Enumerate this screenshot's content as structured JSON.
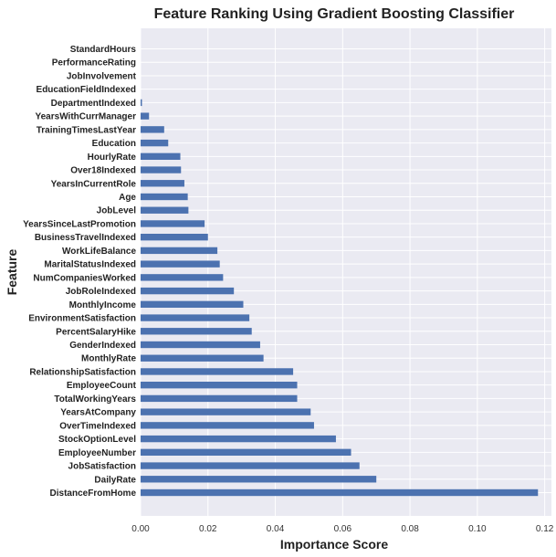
{
  "chart_data": {
    "type": "bar",
    "orientation": "horizontal",
    "title": "Feature Ranking Using Gradient Boosting Classifier",
    "xlabel": "Importance Score",
    "ylabel": "Feature",
    "xlim": [
      0,
      0.122
    ],
    "xticks": [
      "0.00",
      "0.02",
      "0.04",
      "0.06",
      "0.08",
      "0.10",
      "0.12"
    ],
    "grid": true,
    "background": "#eaeaf2",
    "bar_color": "#4c72b0",
    "categories": [
      "DistanceFromHome",
      "DailyRate",
      "JobSatisfaction",
      "EmployeeNumber",
      "StockOptionLevel",
      "OverTimeIndexed",
      "YearsAtCompany",
      "TotalWorkingYears",
      "EmployeeCount",
      "RelationshipSatisfaction",
      "MonthlyRate",
      "GenderIndexed",
      "PercentSalaryHike",
      "EnvironmentSatisfaction",
      "MonthlyIncome",
      "JobRoleIndexed",
      "NumCompaniesWorked",
      "MaritalStatusIndexed",
      "WorkLifeBalance",
      "BusinessTravelIndexed",
      "YearsSinceLastPromotion",
      "JobLevel",
      "Age",
      "YearsInCurrentRole",
      "Over18Indexed",
      "HourlyRate",
      "Education",
      "TrainingTimesLastYear",
      "YearsWithCurrManager",
      "DepartmentIndexed",
      "EducationFieldIndexed",
      "JobInvolvement",
      "PerformanceRating",
      "StandardHours"
    ],
    "values": [
      0.118,
      0.07,
      0.065,
      0.0625,
      0.058,
      0.0515,
      0.0505,
      0.0465,
      0.0465,
      0.0453,
      0.0365,
      0.0355,
      0.033,
      0.0323,
      0.0305,
      0.0277,
      0.0245,
      0.0235,
      0.0228,
      0.02,
      0.019,
      0.0142,
      0.014,
      0.013,
      0.012,
      0.0118,
      0.0082,
      0.007,
      0.0025,
      0.0004,
      0.0,
      0.0,
      0.0,
      0.0
    ]
  }
}
